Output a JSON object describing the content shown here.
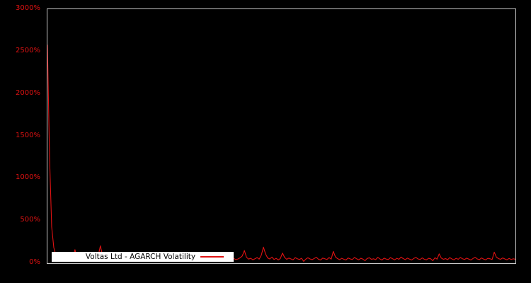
{
  "window": {
    "background": "#000000"
  },
  "chart_data": {
    "type": "line",
    "title": "",
    "xlabel": "",
    "ylabel": "",
    "ylim": [
      0,
      3000
    ],
    "grid": false,
    "x_tick_labels_visible": false,
    "plot_background": "#000000",
    "axis_border_color": "#c8c8c8",
    "tick_label_color": "#e01212",
    "legend_position": "lower-left",
    "legend_background": "#ffffff",
    "yticks": [
      {
        "value": 0,
        "label": "0%"
      },
      {
        "value": 500,
        "label": "500%"
      },
      {
        "value": 1000,
        "label": "1000%"
      },
      {
        "value": 1500,
        "label": "1500%"
      },
      {
        "value": 2000,
        "label": "2000%"
      },
      {
        "value": 2500,
        "label": "2500%"
      },
      {
        "value": 3000,
        "label": "3000%"
      }
    ],
    "series": [
      {
        "name": "Voltas Ltd - AGARCH Volatility",
        "color": "#e01212",
        "unit": "%",
        "values": [
          2580,
          1250,
          430,
          185,
          95,
          60,
          48,
          72,
          55,
          40,
          35,
          62,
          48,
          160,
          58,
          42,
          66,
          50,
          38,
          55,
          45,
          70,
          52,
          40,
          88,
          205,
          95,
          58,
          44,
          62,
          50,
          38,
          56,
          72,
          45,
          30,
          60,
          48,
          80,
          55,
          42,
          65,
          50,
          22,
          58,
          70,
          46,
          36,
          54,
          62,
          44,
          58,
          38,
          48,
          66,
          52,
          40,
          74,
          56,
          44,
          30,
          58,
          46,
          68,
          50,
          40,
          60,
          48,
          22,
          56,
          70,
          52,
          42,
          62,
          48,
          38,
          58,
          66,
          46,
          40,
          54,
          44,
          72,
          52,
          38,
          60,
          46,
          78,
          56,
          42,
          50,
          64,
          85,
          150,
          70,
          48,
          58,
          40,
          52,
          66,
          48,
          95,
          190,
          110,
          62,
          50,
          72,
          44,
          58,
          38,
          56,
          120,
          68,
          46,
          60,
          50,
          40,
          66,
          52,
          44,
          58,
          22,
          48,
          64,
          50,
          42,
          56,
          70,
          46,
          38,
          60,
          52,
          44,
          66,
          48,
          140,
          75,
          54,
          42,
          58,
          46,
          38,
          62,
          50,
          44,
          68,
          52,
          40,
          58,
          48,
          30,
          56,
          64,
          46,
          52,
          42,
          70,
          50,
          38,
          60,
          48,
          44,
          66,
          52,
          40,
          58,
          46,
          72,
          54,
          42,
          60,
          48,
          38,
          56,
          68,
          50,
          44,
          62,
          46,
          40,
          58,
          52,
          30,
          64,
          48,
          110,
          60,
          46,
          54,
          42,
          66,
          50,
          40,
          58,
          46,
          68,
          52,
          44,
          60,
          48,
          38,
          56,
          70,
          50,
          42,
          62,
          48,
          40,
          58,
          52,
          44,
          130,
          72,
          54,
          46,
          62,
          50,
          40,
          56,
          44,
          52,
          46
        ]
      }
    ]
  }
}
